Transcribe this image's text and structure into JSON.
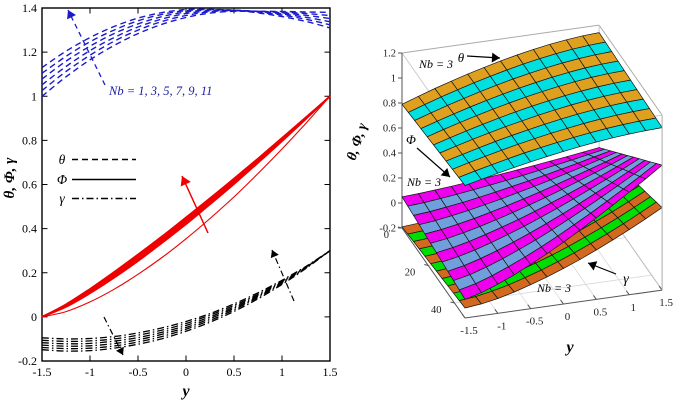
{
  "figure": {
    "background": "#ffffff"
  },
  "colors": {
    "theta_line": "#1a1acd",
    "phi_line": "#ee0000",
    "gamma_line": "#000000",
    "annotation_blue": "#1b1b9e",
    "surface_theta": [
      "#DFA020",
      "#00E0E0"
    ],
    "surface_phi": [
      "#EE00EE",
      "#6FA0DC"
    ],
    "surface_gamma": [
      "#D2691E",
      "#00DD00"
    ]
  },
  "chart_data": [
    {
      "type": "line",
      "title": "",
      "xlabel": "y",
      "ylabel": "θ, Φ, γ",
      "xlim": [
        -1.5,
        1.5
      ],
      "ylim": [
        -0.2,
        1.4
      ],
      "grid": false,
      "x_ticks": [
        -1.5,
        -1,
        -0.5,
        0,
        0.5,
        1,
        1.5
      ],
      "x_tick_labels": [
        "-1.5",
        "-1",
        "-0.5",
        "0",
        "0.5",
        "1",
        "1.5"
      ],
      "y_ticks": [
        -0.2,
        0,
        0.2,
        0.4,
        0.6,
        0.8,
        1,
        1.2,
        1.4
      ],
      "y_tick_labels": [
        "-0.2",
        "0",
        "0.2",
        "0.4",
        "0.6",
        "0.8",
        "1",
        "1.2",
        "1.4"
      ],
      "annotation": "Nb = 1, 3, 5, 7, 9, 11",
      "nb_values": [
        1,
        3,
        5,
        7,
        9,
        11
      ],
      "legend": [
        {
          "label": "θ",
          "style": "dashed"
        },
        {
          "label": "Φ",
          "style": "solid"
        },
        {
          "label": "γ",
          "style": "dashdot"
        }
      ],
      "x": [
        -1.5,
        -1.25,
        -1,
        -0.75,
        -0.5,
        -0.25,
        0,
        0.25,
        0.5,
        0.75,
        1,
        1.25,
        1.5
      ],
      "series": [
        {
          "name": "θ Nb=1",
          "group": "theta",
          "nb": 1,
          "values": [
            1.0,
            1.088,
            1.165,
            1.23,
            1.284,
            1.326,
            1.357,
            1.377,
            1.385,
            1.385,
            1.384,
            1.382,
            1.38
          ]
        },
        {
          "name": "θ Nb=3",
          "group": "theta",
          "nb": 3,
          "values": [
            1.026,
            1.112,
            1.186,
            1.249,
            1.3,
            1.339,
            1.366,
            1.383,
            1.387,
            1.385,
            1.381,
            1.375,
            1.366
          ]
        },
        {
          "name": "θ Nb=5",
          "group": "theta",
          "nb": 5,
          "values": [
            1.052,
            1.135,
            1.207,
            1.266,
            1.314,
            1.35,
            1.375,
            1.387,
            1.389,
            1.385,
            1.378,
            1.367,
            1.352
          ]
        },
        {
          "name": "θ Nb=7",
          "group": "theta",
          "nb": 7,
          "values": [
            1.078,
            1.159,
            1.227,
            1.284,
            1.328,
            1.361,
            1.382,
            1.391,
            1.39,
            1.384,
            1.373,
            1.358,
            1.338
          ]
        },
        {
          "name": "θ Nb=9",
          "group": "theta",
          "nb": 9,
          "values": [
            1.104,
            1.181,
            1.247,
            1.3,
            1.342,
            1.371,
            1.388,
            1.393,
            1.39,
            1.381,
            1.368,
            1.349,
            1.324
          ]
        },
        {
          "name": "θ Nb=11",
          "group": "theta",
          "nb": 11,
          "values": [
            1.13,
            1.204,
            1.266,
            1.316,
            1.354,
            1.379,
            1.393,
            1.394,
            1.389,
            1.378,
            1.361,
            1.339,
            1.31
          ]
        },
        {
          "name": "Φ Nb=1",
          "group": "phi",
          "nb": 1,
          "values": [
            0,
            0.024,
            0.068,
            0.125,
            0.193,
            0.269,
            0.354,
            0.446,
            0.544,
            0.65,
            0.761,
            0.878,
            1.0
          ]
        },
        {
          "name": "Φ Nb=3",
          "group": "phi",
          "nb": 3,
          "values": [
            0,
            0.045,
            0.107,
            0.177,
            0.253,
            0.335,
            0.42,
            0.51,
            0.602,
            0.698,
            0.796,
            0.897,
            1.0
          ]
        },
        {
          "name": "Φ Nb=5",
          "group": "phi",
          "nb": 5,
          "values": [
            0,
            0.048,
            0.111,
            0.183,
            0.26,
            0.342,
            0.428,
            0.517,
            0.609,
            0.703,
            0.8,
            0.899,
            1.0
          ]
        },
        {
          "name": "Φ Nb=7",
          "group": "phi",
          "nb": 7,
          "values": [
            0,
            0.051,
            0.117,
            0.189,
            0.268,
            0.35,
            0.435,
            0.524,
            0.615,
            0.708,
            0.804,
            0.901,
            1.0
          ]
        },
        {
          "name": "Φ Nb=9",
          "group": "phi",
          "nb": 9,
          "values": [
            0,
            0.054,
            0.122,
            0.196,
            0.275,
            0.357,
            0.443,
            0.531,
            0.621,
            0.713,
            0.807,
            0.903,
            1.0
          ]
        },
        {
          "name": "Φ Nb=11",
          "group": "phi",
          "nb": 11,
          "values": [
            0,
            0.057,
            0.127,
            0.203,
            0.283,
            0.365,
            0.451,
            0.538,
            0.627,
            0.718,
            0.811,
            0.905,
            1.0
          ]
        },
        {
          "name": "γ Nb=1",
          "group": "gamma",
          "nb": 1,
          "values": [
            -0.095,
            -0.1,
            -0.098,
            -0.089,
            -0.073,
            -0.05,
            -0.021,
            0.015,
            0.059,
            0.109,
            0.166,
            0.229,
            0.3
          ]
        },
        {
          "name": "γ Nb=3",
          "group": "gamma",
          "nb": 3,
          "values": [
            -0.106,
            -0.111,
            -0.109,
            -0.1,
            -0.083,
            -0.06,
            -0.03,
            0.008,
            0.052,
            0.103,
            0.162,
            0.227,
            0.3
          ]
        },
        {
          "name": "γ Nb=5",
          "group": "gamma",
          "nb": 5,
          "values": [
            -0.117,
            -0.122,
            -0.12,
            -0.11,
            -0.094,
            -0.07,
            -0.039,
            0.0,
            0.045,
            0.098,
            0.158,
            0.226,
            0.3
          ]
        },
        {
          "name": "γ Nb=7",
          "group": "gamma",
          "nb": 7,
          "values": [
            -0.128,
            -0.133,
            -0.131,
            -0.121,
            -0.104,
            -0.079,
            -0.048,
            -0.008,
            0.039,
            0.093,
            0.155,
            0.224,
            0.3
          ]
        },
        {
          "name": "γ Nb=9",
          "group": "gamma",
          "nb": 9,
          "values": [
            -0.139,
            -0.144,
            -0.142,
            -0.132,
            -0.114,
            -0.089,
            -0.056,
            -0.016,
            0.032,
            0.088,
            0.151,
            0.222,
            0.3
          ]
        },
        {
          "name": "γ Nb=11",
          "group": "gamma",
          "nb": 11,
          "values": [
            -0.149,
            -0.155,
            -0.153,
            -0.142,
            -0.124,
            -0.099,
            -0.065,
            -0.024,
            0.025,
            0.082,
            0.147,
            0.22,
            0.3
          ]
        }
      ]
    },
    {
      "type": "surface3d",
      "xlabel": "y",
      "zlabel": "θ, Φ, γ",
      "zlim": [
        -0.2,
        1.2
      ],
      "t_range": [
        0,
        48
      ],
      "x_ticks": [
        -1.5,
        -1,
        -0.5,
        0,
        0.5,
        1,
        1.5
      ],
      "x_tick_labels": [
        "-1.5",
        "-1",
        "-0.5",
        "0",
        "0.5",
        "1",
        "1.5"
      ],
      "t_ticks": [
        0,
        20,
        40
      ],
      "t_tick_labels": [
        "0",
        "20",
        "40"
      ],
      "z_ticks": [
        1.2,
        1,
        0.8,
        0.6,
        0.4,
        0.2,
        0,
        -0.2
      ],
      "z_tick_labels": [
        "1.2",
        "1",
        "0.8",
        "0.6",
        "0.4",
        "0.2",
        "0",
        "-0.2"
      ],
      "surface_labels": {
        "theta": "θ",
        "phi": "Φ",
        "gamma": "γ"
      },
      "nb_annotation": "Nb = 3",
      "y": [
        -1.5,
        -1.25,
        -1,
        -0.75,
        -0.5,
        -0.25,
        0,
        0.25,
        0.5,
        0.75,
        1,
        1.25,
        1.5
      ],
      "surfaces": [
        {
          "name": "gamma",
          "rows": 11,
          "colors": [
            "#D2691E",
            "#00DD00"
          ],
          "z_back": [
            -0.19,
            -0.18,
            -0.162,
            -0.139,
            -0.111,
            -0.08,
            -0.045,
            -0.007,
            0.033,
            0.076,
            0.122,
            0.17,
            0.22
          ],
          "z_front": [
            -0.12,
            -0.106,
            -0.081,
            -0.048,
            -0.008,
            0.036,
            0.085,
            0.138,
            0.196,
            0.257,
            0.321,
            0.389,
            0.46
          ]
        },
        {
          "name": "phi",
          "rows": 11,
          "colors": [
            "#EE00EE",
            "#6FA0DC"
          ],
          "z_back": [
            0.05,
            0.057,
            0.067,
            0.078,
            0.091,
            0.104,
            0.119,
            0.134,
            0.15,
            0.167,
            0.184,
            0.202,
            0.22
          ],
          "z_front": [
            -0.05,
            -0.016,
            0.033,
            0.09,
            0.154,
            0.222,
            0.295,
            0.372,
            0.452,
            0.535,
            0.621,
            0.709,
            0.8
          ]
        },
        {
          "name": "theta",
          "rows": 10,
          "colors": [
            "#DFA020",
            "#00E0E0"
          ],
          "z_back": [
            0.79,
            0.835,
            0.879,
            0.919,
            0.957,
            0.992,
            1.025,
            1.054,
            1.08,
            1.102,
            1.12,
            1.133,
            1.14
          ],
          "z_front": [
            0.86,
            0.891,
            0.921,
            0.949,
            0.975,
            0.999,
            1.021,
            1.041,
            1.059,
            1.074,
            1.086,
            1.095,
            1.1
          ]
        }
      ]
    }
  ]
}
